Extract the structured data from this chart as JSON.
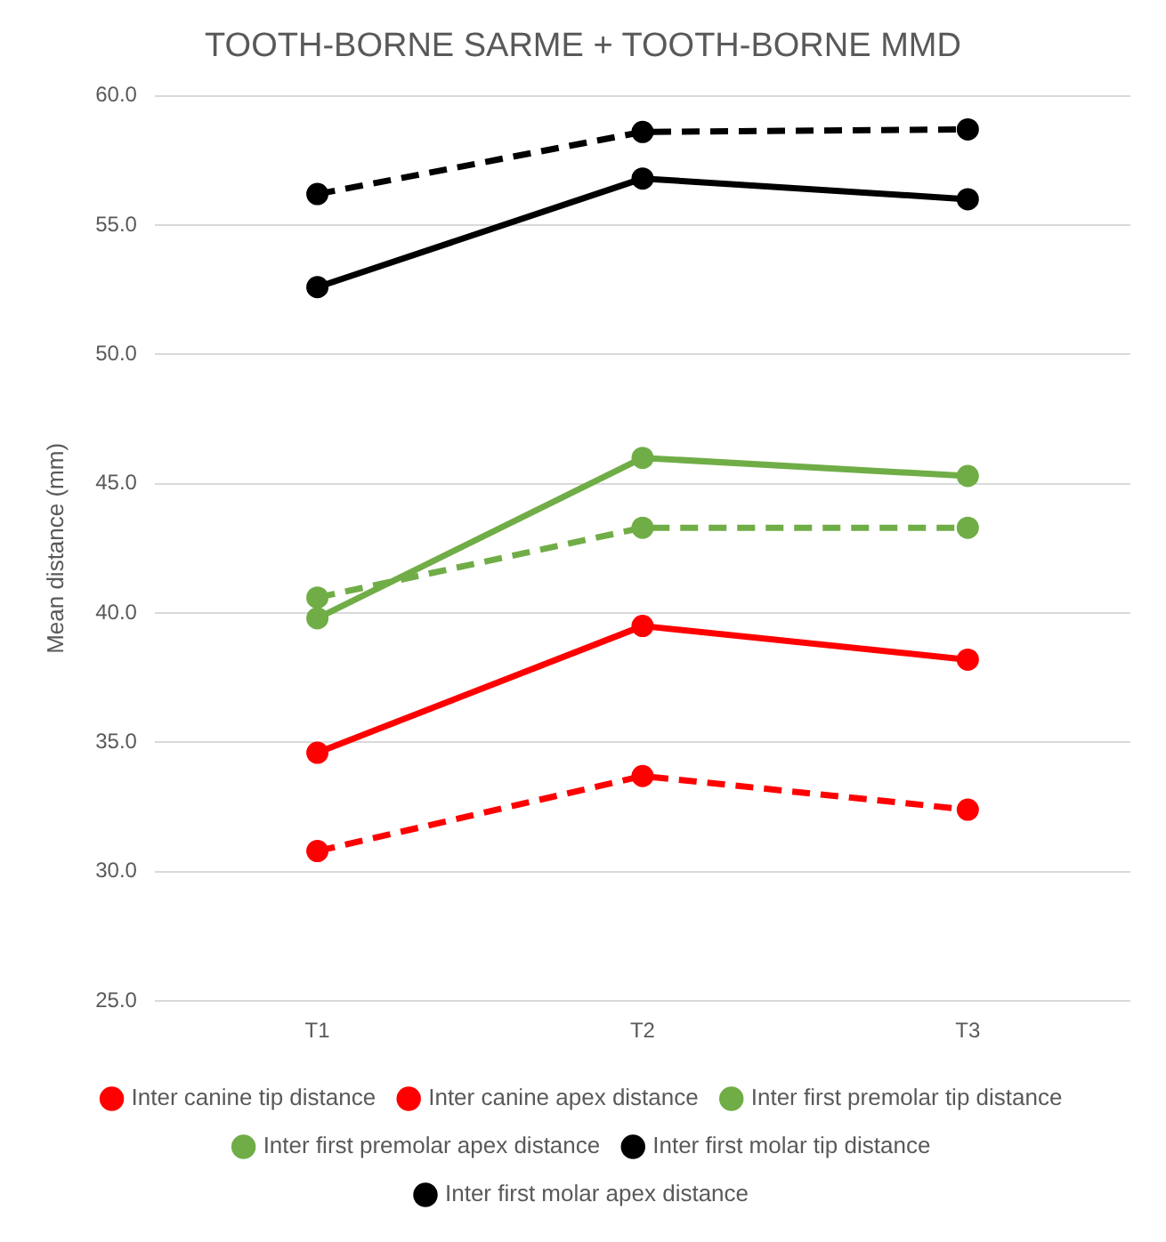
{
  "chart_data": {
    "type": "line",
    "title": "TOOTH-BORNE SARME + TOOTH-BORNE MMD",
    "ylabel": "Mean distance (mm)",
    "categories": [
      "T1",
      "T2",
      "T3"
    ],
    "series": [
      {
        "name": "Inter canine tip distance",
        "color": "#ff0000",
        "line_style": "solid",
        "values": [
          34.6,
          39.5,
          38.2
        ]
      },
      {
        "name": "Inter canine apex distance",
        "color": "#ff0000",
        "line_style": "dashed",
        "values": [
          30.8,
          33.7,
          32.4
        ]
      },
      {
        "name": "Inter first premolar tip distance",
        "color": "#70ad47",
        "line_style": "solid",
        "values": [
          39.8,
          46.0,
          45.3
        ]
      },
      {
        "name": "Inter first premolar apex distance",
        "color": "#70ad47",
        "line_style": "dashed",
        "values": [
          40.6,
          43.3,
          43.3
        ]
      },
      {
        "name": "Inter first molar tip distance",
        "color": "#000000",
        "line_style": "solid",
        "values": [
          52.6,
          56.8,
          56.0
        ]
      },
      {
        "name": "Inter first molar apex distance",
        "color": "#000000",
        "line_style": "dashed",
        "values": [
          56.2,
          58.6,
          58.7
        ]
      }
    ],
    "ylim": [
      25,
      60
    ],
    "yticks": [
      {
        "value": 25,
        "label": "25.0"
      },
      {
        "value": 30,
        "label": "30.0"
      },
      {
        "value": 35,
        "label": "35.0"
      },
      {
        "value": 40,
        "label": "40.0"
      },
      {
        "value": 45,
        "label": "45.0"
      },
      {
        "value": 50,
        "label": "50.0"
      },
      {
        "value": 55,
        "label": "55.0"
      },
      {
        "value": 60,
        "label": "60.0"
      }
    ],
    "grid": "y",
    "legend": "bottom",
    "marker": "circle"
  }
}
